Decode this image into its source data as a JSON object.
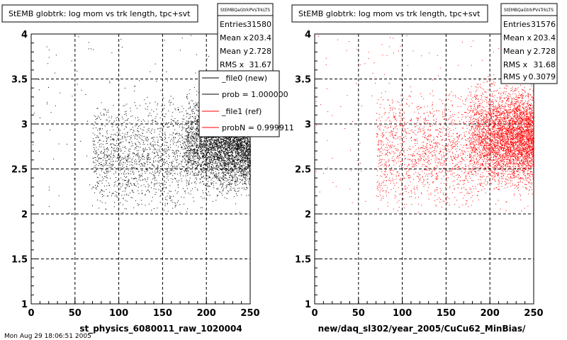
{
  "footer": "Mon Aug 29 18:06:51 2005",
  "chart_data": [
    {
      "type": "scatter",
      "title": "StEMB globtrk: log mom vs trk length, tpc+svt",
      "xlabel": "st_physics_6080011_raw_1020004",
      "ylabel": "",
      "xlim": [
        0,
        250
      ],
      "ylim": [
        1,
        4
      ],
      "xticks": [
        "0",
        "50",
        "100",
        "150",
        "200",
        "250"
      ],
      "yticks": [
        "1",
        "1.5",
        "2",
        "2.5",
        "3",
        "3.5",
        "4"
      ],
      "grid": true,
      "point_color": "#000000",
      "stats": {
        "name": "StEMBQaGtrkPVsTrkLTS",
        "rows": [
          {
            "label": "Entries",
            "value": "31580"
          },
          {
            "label": "Mean x",
            "value": "203.4"
          },
          {
            "label": "Mean y",
            "value": "2.728"
          },
          {
            "label": "RMS x",
            "value": "31.67"
          }
        ]
      },
      "legend": {
        "placement": "top-right",
        "entries": [
          {
            "label": "_file0 (new)",
            "color": "#000000"
          },
          {
            "label": "prob = 1.000000",
            "color": "#000000"
          },
          {
            "label": "_file1 (ref)",
            "color": "#ff0000"
          },
          {
            "label": "probN = 0.999911",
            "color": "#ff0000"
          }
        ]
      },
      "distribution": {
        "dense_region": {
          "x": [
            175,
            250
          ],
          "y": [
            2.1,
            3.5
          ]
        },
        "sparse_region": {
          "x": [
            70,
            180
          ],
          "y": [
            2.0,
            3.3
          ]
        },
        "scattered_outliers": {
          "x": [
            0,
            250
          ],
          "y": [
            2.0,
            4.0
          ]
        }
      }
    },
    {
      "type": "scatter",
      "title": "StEMB globtrk: log mom vs trk length, tpc+svt",
      "xlabel": "new/daq_sl302/year_2005/CuCu62_MinBias/",
      "ylabel": "",
      "xlim": [
        0,
        250
      ],
      "ylim": [
        1,
        4
      ],
      "xticks": [
        "0",
        "50",
        "100",
        "150",
        "200",
        "250"
      ],
      "yticks": [
        "1",
        "1.5",
        "2",
        "2.5",
        "3",
        "3.5",
        "4"
      ],
      "grid": true,
      "point_color": "#ff0000",
      "stats": {
        "name": "StEMBQaGtrkPVsTrkLTS",
        "rows": [
          {
            "label": "Entries",
            "value": "31576"
          },
          {
            "label": "Mean x",
            "value": "203.4"
          },
          {
            "label": "Mean y",
            "value": "2.728"
          },
          {
            "label": "RMS x",
            "value": "31.68"
          },
          {
            "label": "RMS y",
            "value": "0.3079"
          }
        ]
      },
      "distribution": {
        "dense_region": {
          "x": [
            175,
            250
          ],
          "y": [
            2.1,
            3.6
          ]
        },
        "sparse_region": {
          "x": [
            70,
            180
          ],
          "y": [
            2.0,
            3.4
          ]
        },
        "scattered_outliers": {
          "x": [
            0,
            250
          ],
          "y": [
            2.0,
            4.0
          ]
        }
      }
    }
  ]
}
